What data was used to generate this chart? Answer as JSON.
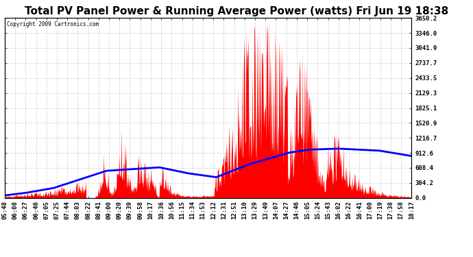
{
  "title": "Total PV Panel Power & Running Average Power (watts) Fri Jun 19 18:38",
  "copyright": "Copyright 2009 Cartronics.com",
  "yticks": [
    0.0,
    304.2,
    608.4,
    912.6,
    1216.7,
    1520.9,
    1825.1,
    2129.3,
    2433.5,
    2737.7,
    3041.9,
    3346.0,
    3650.2
  ],
  "ymax": 3650.2,
  "xtick_labels": [
    "05:48",
    "06:08",
    "06:27",
    "06:46",
    "07:05",
    "07:25",
    "07:44",
    "08:03",
    "08:22",
    "08:41",
    "09:00",
    "09:20",
    "09:39",
    "09:58",
    "10:17",
    "10:36",
    "10:56",
    "11:15",
    "11:34",
    "11:53",
    "12:12",
    "12:31",
    "12:51",
    "13:10",
    "13:29",
    "13:49",
    "14:07",
    "14:27",
    "14:46",
    "15:05",
    "15:24",
    "15:43",
    "16:02",
    "16:22",
    "16:41",
    "17:00",
    "17:19",
    "17:38",
    "17:58",
    "18:17"
  ],
  "background_color": "#ffffff",
  "plot_bg_color": "#ffffff",
  "grid_color": "#cccccc",
  "bar_color": "#ff0000",
  "line_color": "#0000ff",
  "title_fontsize": 11,
  "tick_fontsize": 6.5
}
